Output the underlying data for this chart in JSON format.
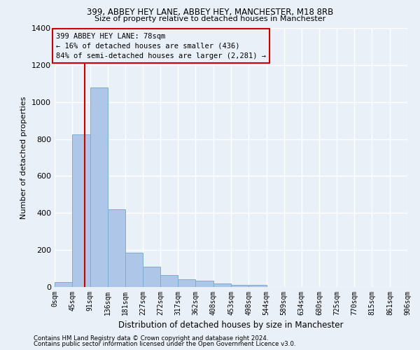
{
  "title": "399, ABBEY HEY LANE, ABBEY HEY, MANCHESTER, M18 8RB",
  "subtitle": "Size of property relative to detached houses in Manchester",
  "xlabel": "Distribution of detached houses by size in Manchester",
  "ylabel": "Number of detached properties",
  "bar_values": [
    25,
    825,
    1080,
    420,
    185,
    110,
    65,
    40,
    35,
    20,
    10,
    10,
    0,
    0,
    0,
    0,
    0,
    0,
    0,
    0
  ],
  "bin_edges": [
    0,
    45,
    91,
    136,
    181,
    227,
    272,
    317,
    362,
    408,
    453,
    498,
    544,
    589,
    634,
    680,
    725,
    770,
    815,
    861,
    906
  ],
  "tick_labels": [
    "0sqm",
    "45sqm",
    "91sqm",
    "136sqm",
    "181sqm",
    "227sqm",
    "272sqm",
    "317sqm",
    "362sqm",
    "408sqm",
    "453sqm",
    "498sqm",
    "544sqm",
    "589sqm",
    "634sqm",
    "680sqm",
    "725sqm",
    "770sqm",
    "815sqm",
    "861sqm",
    "906sqm"
  ],
  "bar_color": "#aec6e8",
  "bar_edge_color": "#7aadd4",
  "background_color": "#eaf0f8",
  "grid_color": "#ffffff",
  "vline_x": 78,
  "vline_color": "#cc0000",
  "annotation_text": "399 ABBEY HEY LANE: 78sqm\n← 16% of detached houses are smaller (436)\n84% of semi-detached houses are larger (2,281) →",
  "annotation_box_color": "#cc0000",
  "ylim": [
    0,
    1400
  ],
  "yticks": [
    0,
    200,
    400,
    600,
    800,
    1000,
    1200,
    1400
  ],
  "footer_line1": "Contains HM Land Registry data © Crown copyright and database right 2024.",
  "footer_line2": "Contains public sector information licensed under the Open Government Licence v3.0."
}
